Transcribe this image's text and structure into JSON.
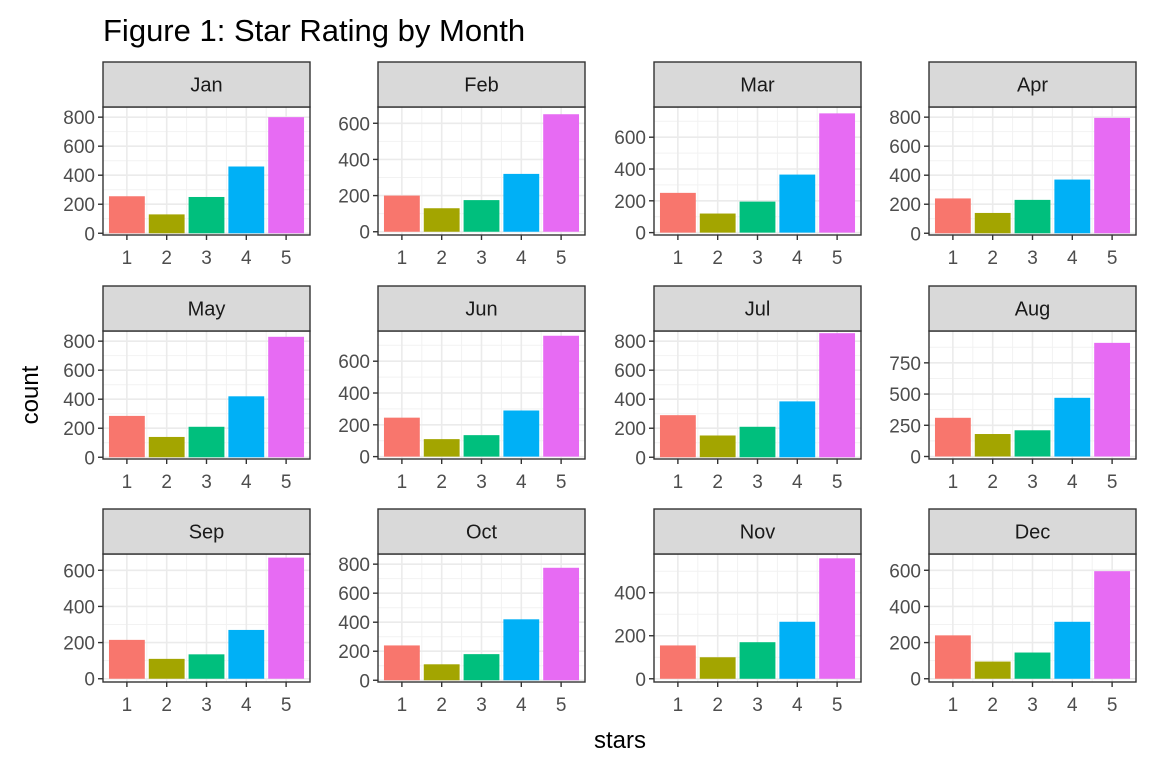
{
  "chart_data": {
    "type": "bar",
    "title": "Figure 1: Star Rating by Month",
    "xlabel": "stars",
    "ylabel": "count",
    "categories": [
      "1",
      "2",
      "3",
      "4",
      "5"
    ],
    "bar_colors": [
      "#F8766D",
      "#A3A500",
      "#00BF7D",
      "#00B0F6",
      "#E76BF3"
    ],
    "grid": true,
    "facets": [
      {
        "label": "Jan",
        "values": [
          255,
          130,
          250,
          460,
          800
        ],
        "ylim": [
          -12,
          870
        ],
        "yticks": [
          0,
          200,
          400,
          600,
          800
        ]
      },
      {
        "label": "Feb",
        "values": [
          200,
          130,
          175,
          320,
          650
        ],
        "ylim": [
          -18,
          690
        ],
        "yticks": [
          0,
          200,
          400,
          600
        ]
      },
      {
        "label": "Mar",
        "values": [
          250,
          120,
          195,
          365,
          750
        ],
        "ylim": [
          -15,
          790
        ],
        "yticks": [
          0,
          200,
          400,
          600
        ]
      },
      {
        "label": "Apr",
        "values": [
          240,
          140,
          230,
          370,
          795
        ],
        "ylim": [
          -12,
          870
        ],
        "yticks": [
          0,
          200,
          400,
          600,
          800
        ]
      },
      {
        "label": "May",
        "values": [
          285,
          140,
          210,
          420,
          830
        ],
        "ylim": [
          -12,
          870
        ],
        "yticks": [
          0,
          200,
          400,
          600,
          800
        ]
      },
      {
        "label": "Jun",
        "values": [
          245,
          110,
          135,
          290,
          760
        ],
        "ylim": [
          -15,
          790
        ],
        "yticks": [
          0,
          200,
          400,
          600
        ]
      },
      {
        "label": "Jul",
        "values": [
          290,
          150,
          210,
          385,
          855
        ],
        "ylim": [
          -12,
          870
        ],
        "yticks": [
          0,
          200,
          400,
          600,
          800
        ]
      },
      {
        "label": "Aug",
        "values": [
          310,
          180,
          210,
          470,
          910
        ],
        "ylim": [
          -20,
          1005
        ],
        "yticks": [
          0,
          250,
          500,
          750
        ]
      },
      {
        "label": "Sep",
        "values": [
          215,
          110,
          135,
          270,
          670
        ],
        "ylim": [
          -18,
          690
        ],
        "yticks": [
          0,
          200,
          400,
          600
        ]
      },
      {
        "label": "Oct",
        "values": [
          240,
          110,
          180,
          420,
          775
        ],
        "ylim": [
          -12,
          870
        ],
        "yticks": [
          0,
          200,
          400,
          600,
          800
        ]
      },
      {
        "label": "Nov",
        "values": [
          155,
          100,
          170,
          265,
          560
        ],
        "ylim": [
          -15,
          580
        ],
        "yticks": [
          0,
          200,
          400
        ]
      },
      {
        "label": "Dec",
        "values": [
          240,
          95,
          145,
          315,
          595
        ],
        "ylim": [
          -18,
          690
        ],
        "yticks": [
          0,
          200,
          400,
          600
        ]
      }
    ]
  }
}
